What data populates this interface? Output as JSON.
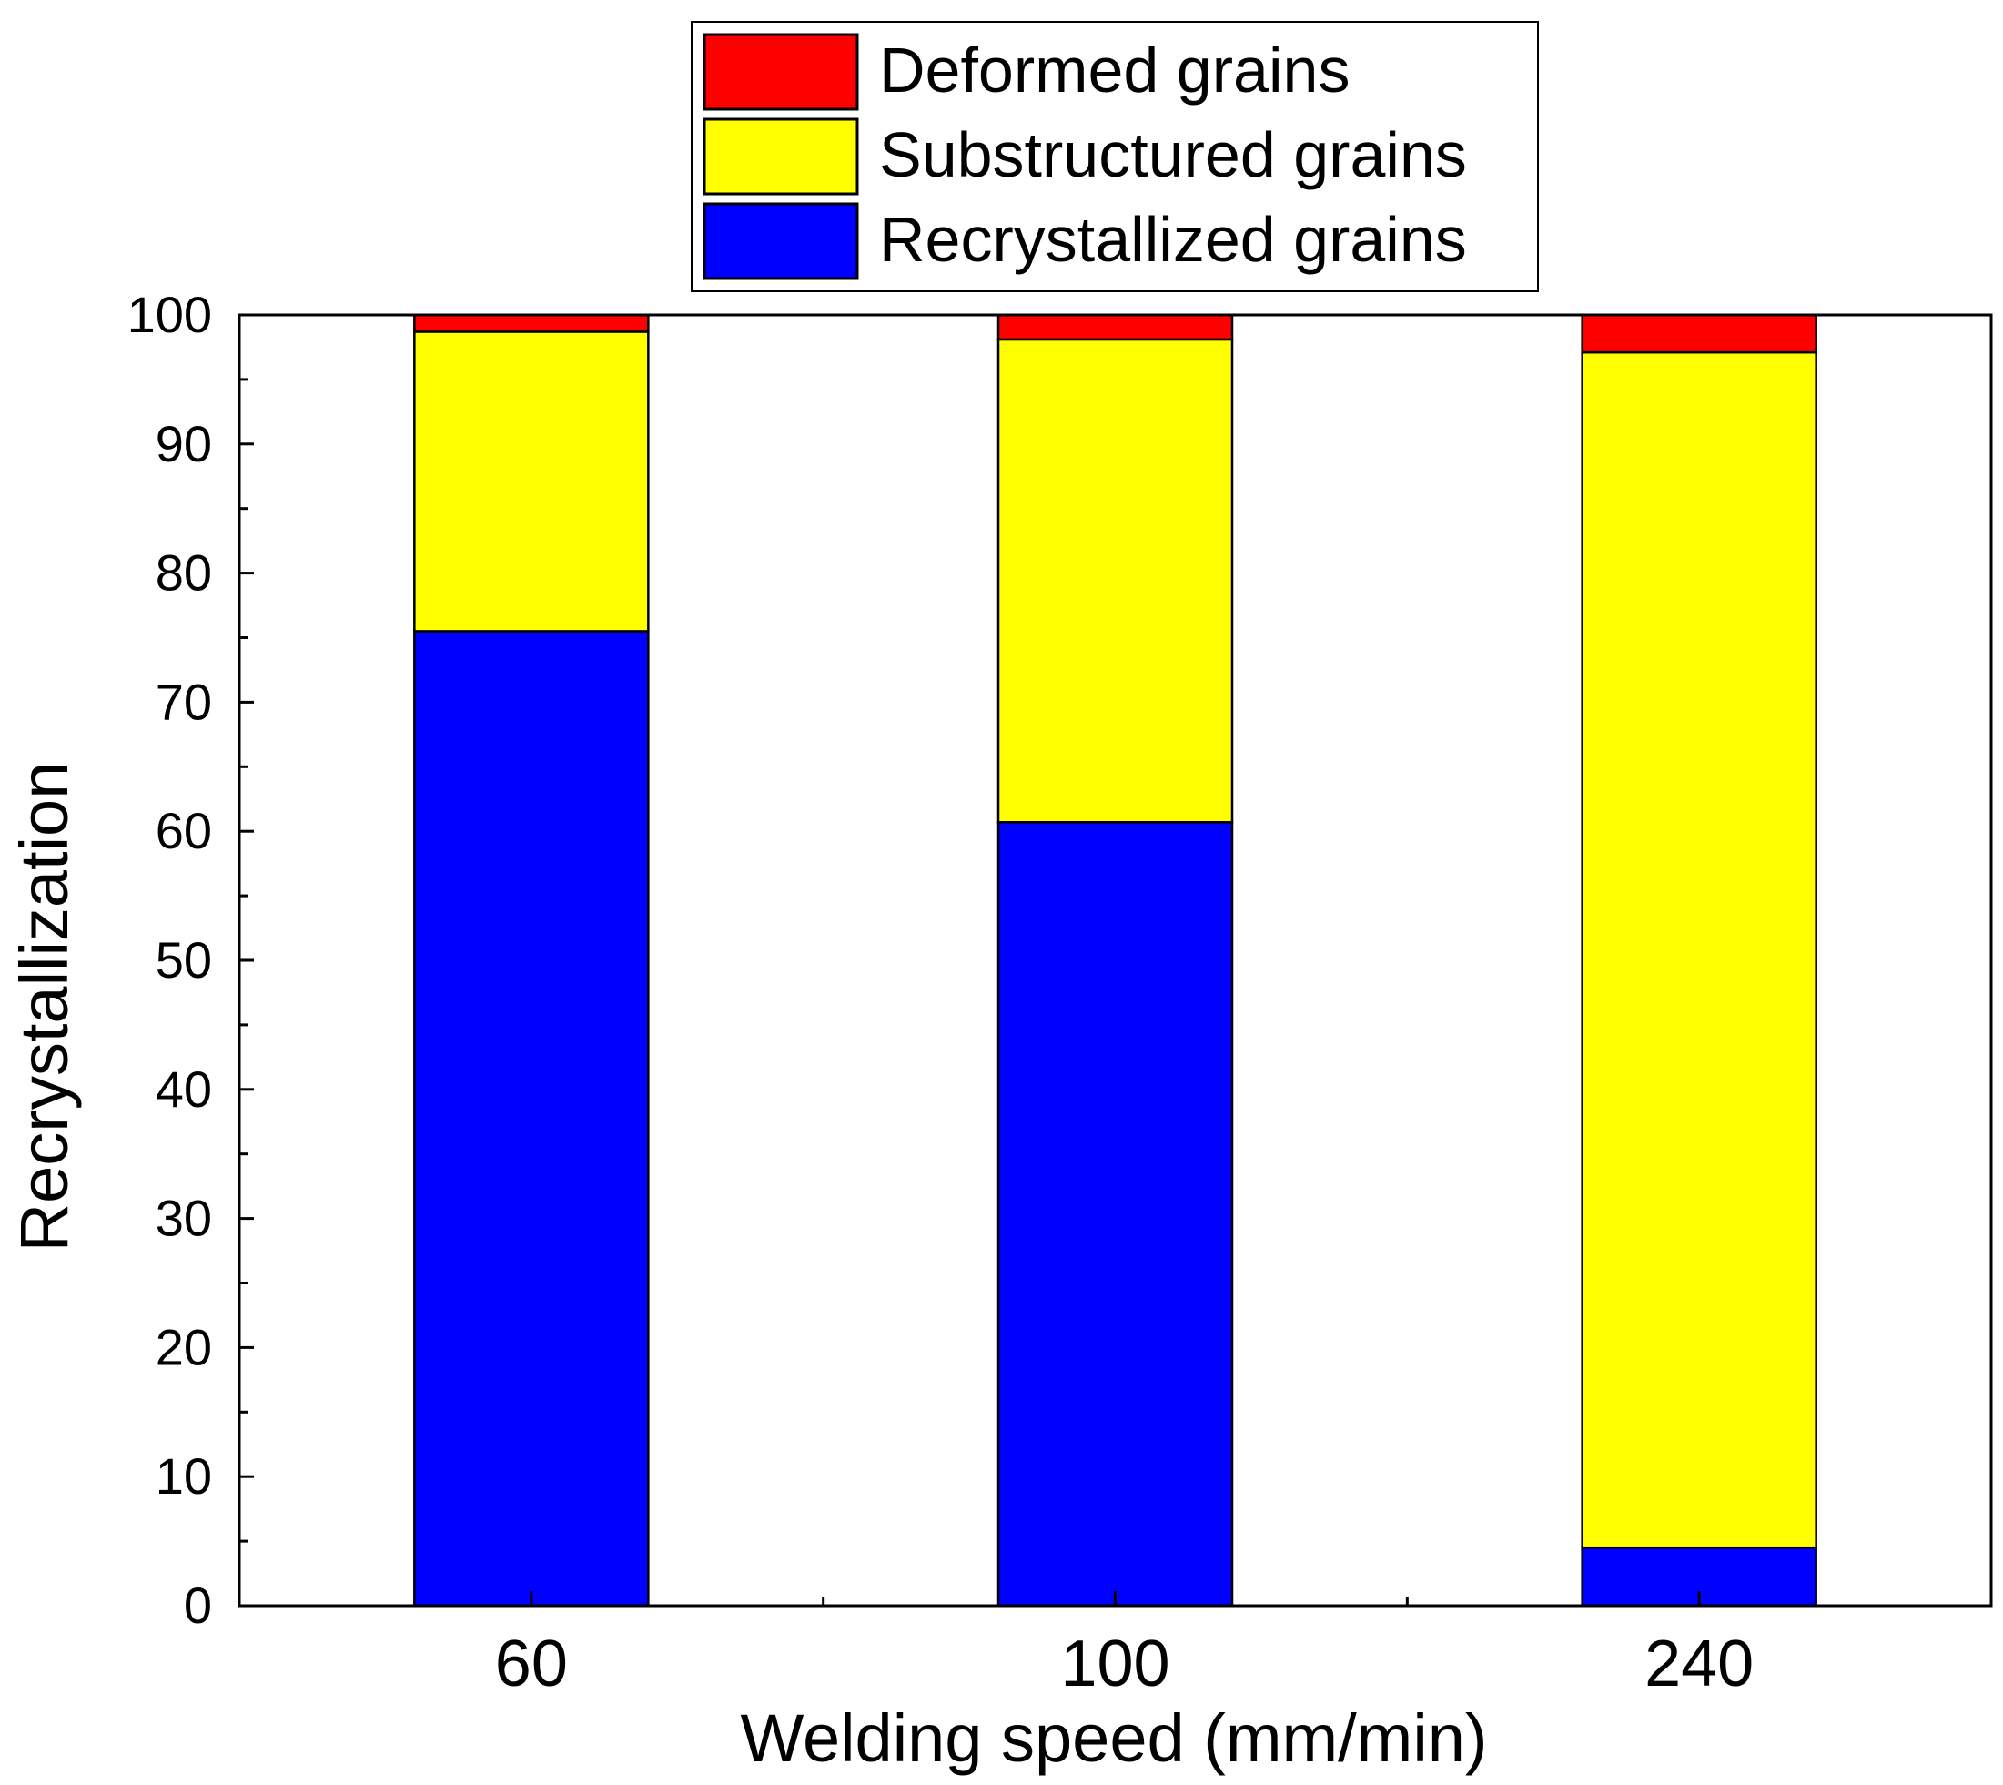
{
  "chart_data": {
    "type": "bar",
    "stacked": true,
    "title": "",
    "xlabel": "Welding speed (mm/min)",
    "ylabel": "Recrystallization",
    "categories": [
      "60",
      "100",
      "240"
    ],
    "ylim": [
      0,
      100
    ],
    "yticks": [
      0,
      10,
      20,
      30,
      40,
      50,
      60,
      70,
      80,
      90,
      100
    ],
    "grid": false,
    "legend_position": "top-center",
    "series": [
      {
        "name": "Recrystallized grains",
        "color": "#0000FF",
        "values": [
          75.5,
          60.7,
          4.5
        ]
      },
      {
        "name": "Substructured grains",
        "color": "#FFFF00",
        "values": [
          23.2,
          37.4,
          92.6
        ]
      },
      {
        "name": "Deformed grains",
        "color": "#FF0000",
        "values": [
          1.3,
          1.9,
          2.9
        ]
      }
    ],
    "legend_order": [
      "Deformed grains",
      "Substructured grains",
      "Recrystallized grains"
    ]
  }
}
